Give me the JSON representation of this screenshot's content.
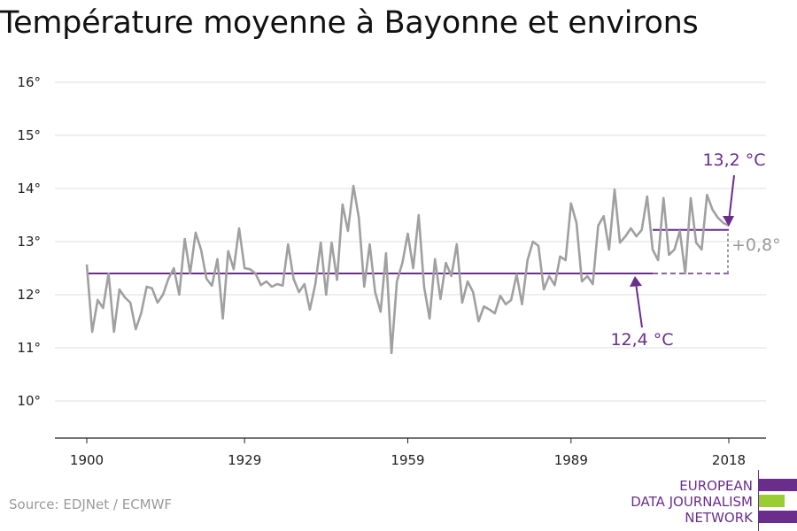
{
  "title": "Température moyenne à Bayonne et environs",
  "source": "Source: EDJNet / ECMWF",
  "logo": {
    "line1": "EUROPEAN",
    "line2": "DATA JOURNALISM",
    "line3": "NETWORK",
    "color_purple": "#6a2d8c",
    "color_green": "#9acd32"
  },
  "colors": {
    "series": "#a0a0a0",
    "accent": "#6a2d8c",
    "grid": "#dddddd"
  },
  "chart_data": {
    "type": "line",
    "title": "Température moyenne à Bayonne et environs",
    "xlabel": "",
    "ylabel": "",
    "xlim": [
      1900,
      2018
    ],
    "ylim": [
      10,
      16
    ],
    "grid": true,
    "x_ticks": [
      1900,
      1929,
      1959,
      1989,
      2018
    ],
    "y_ticks": [
      {
        "value": 10,
        "label": "10°"
      },
      {
        "value": 11,
        "label": "11°"
      },
      {
        "value": 12,
        "label": "12°"
      },
      {
        "value": 13,
        "label": "13°"
      },
      {
        "value": 14,
        "label": "14°"
      },
      {
        "value": 15,
        "label": "15°"
      },
      {
        "value": 16,
        "label": "16°"
      }
    ],
    "series": [
      {
        "x": [
          1900,
          1901,
          1902,
          1903,
          1904,
          1905,
          1906,
          1907,
          1908,
          1909,
          1910,
          1911,
          1912,
          1913,
          1914,
          1915,
          1916,
          1917,
          1918,
          1919,
          1920,
          1921,
          1922,
          1923,
          1924,
          1925,
          1926,
          1927,
          1928,
          1929,
          1930,
          1931,
          1932,
          1933,
          1934,
          1935,
          1936,
          1937,
          1938,
          1939,
          1940,
          1941,
          1942,
          1943,
          1944,
          1945,
          1946,
          1947,
          1948,
          1949,
          1950,
          1951,
          1952,
          1953,
          1954,
          1955,
          1956,
          1957,
          1958,
          1959,
          1960,
          1961,
          1962,
          1963,
          1964,
          1965,
          1966,
          1967,
          1968,
          1969,
          1970,
          1971,
          1972,
          1973,
          1974,
          1975,
          1976,
          1977,
          1978,
          1979,
          1980,
          1981,
          1982,
          1983,
          1984,
          1985,
          1986,
          1987,
          1988,
          1989,
          1990,
          1991,
          1992,
          1993,
          1994,
          1995,
          1996,
          1997,
          1998,
          1999,
          2000,
          2001,
          2002,
          2003,
          2004,
          2005,
          2006,
          2007,
          2008,
          2009,
          2010,
          2011,
          2012,
          2013,
          2014,
          2015,
          2016,
          2017,
          2018
        ],
        "values": [
          12.57,
          11.3,
          11.9,
          11.75,
          12.4,
          11.3,
          12.1,
          11.95,
          11.85,
          11.35,
          11.65,
          12.15,
          12.12,
          11.85,
          12.0,
          12.3,
          12.5,
          12.0,
          13.05,
          12.4,
          13.17,
          12.85,
          12.3,
          12.17,
          12.67,
          11.55,
          12.82,
          12.48,
          13.25,
          12.5,
          12.48,
          12.4,
          12.18,
          12.25,
          12.15,
          12.2,
          12.17,
          12.95,
          12.3,
          12.05,
          12.2,
          11.72,
          12.2,
          12.98,
          12.0,
          12.98,
          12.28,
          13.7,
          13.2,
          14.05,
          13.45,
          12.15,
          12.95,
          12.05,
          11.68,
          12.78,
          10.9,
          12.25,
          12.6,
          13.15,
          12.5,
          13.5,
          12.15,
          11.55,
          12.67,
          11.92,
          12.6,
          12.35,
          12.95,
          11.85,
          12.25,
          12.05,
          11.5,
          11.78,
          11.72,
          11.65,
          11.98,
          11.82,
          11.9,
          12.38,
          11.82,
          12.65,
          13.0,
          12.92,
          12.1,
          12.35,
          12.18,
          12.72,
          12.65,
          13.72,
          13.35,
          12.25,
          12.35,
          12.2,
          13.3,
          13.48,
          12.85,
          13.98,
          12.98,
          13.1,
          13.25,
          13.1,
          13.22,
          13.85,
          12.85,
          12.65,
          13.82,
          12.75,
          12.85,
          13.2,
          12.4,
          13.82,
          12.98,
          12.85,
          13.88,
          13.6,
          13.45,
          13.35,
          13.3
        ]
      }
    ],
    "reference_lines": [
      {
        "label": "12,4 °C",
        "value": 12.4,
        "solid_from": 1900,
        "solid_to": 2004,
        "dashed_to": 2018
      },
      {
        "label": "13,2 °C",
        "value": 13.22,
        "solid_from": 2004,
        "solid_to": 2018
      }
    ],
    "difference_label": "+0,8°"
  }
}
